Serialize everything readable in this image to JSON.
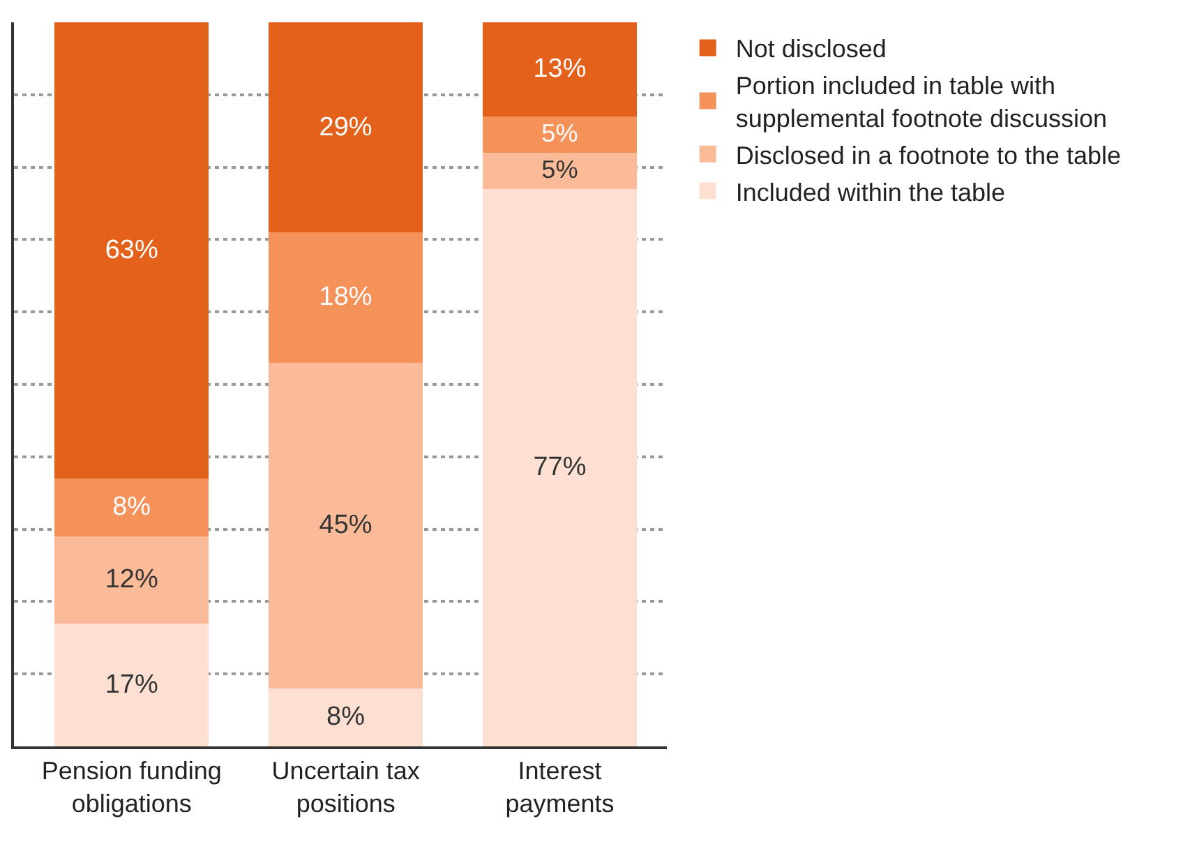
{
  "chart_data": {
    "type": "bar",
    "stacked": true,
    "categories": [
      "Pension funding obligations",
      "Uncertain tax positions",
      "Interest payments"
    ],
    "series": [
      {
        "name": "Included within the table",
        "color": "#fde0d2",
        "values": [
          17,
          8,
          77
        ],
        "value_labels": [
          "17%",
          "8%",
          "77%"
        ]
      },
      {
        "name": "Disclosed in a footnote to the table",
        "color": "#fbbb98",
        "values": [
          12,
          45,
          5
        ],
        "value_labels": [
          "12%",
          "45%",
          "5%"
        ]
      },
      {
        "name": "Portion included in table with supplemental footnote discussion",
        "color": "#f4925a",
        "values": [
          8,
          18,
          5
        ],
        "value_labels": [
          "8%",
          "18%",
          "5%"
        ]
      },
      {
        "name": "Not disclosed",
        "color": "#e3611a",
        "values": [
          63,
          29,
          13
        ],
        "value_labels": [
          "63%",
          "29%",
          "13%"
        ]
      }
    ],
    "ylim": [
      0,
      100
    ],
    "yticks": [
      {
        "value": 0,
        "label": null
      },
      {
        "value": 10,
        "label": null
      },
      {
        "value": 20,
        "label": null
      },
      {
        "value": 30,
        "label": null
      },
      {
        "value": 40,
        "label": null
      },
      {
        "value": 50,
        "label": null
      },
      {
        "value": 60,
        "label": null
      },
      {
        "value": 70,
        "label": null
      },
      {
        "value": 80,
        "label": null
      },
      {
        "value": 90,
        "label": null
      }
    ],
    "tick_labels": "x",
    "grid": "y",
    "legend": "top right"
  }
}
